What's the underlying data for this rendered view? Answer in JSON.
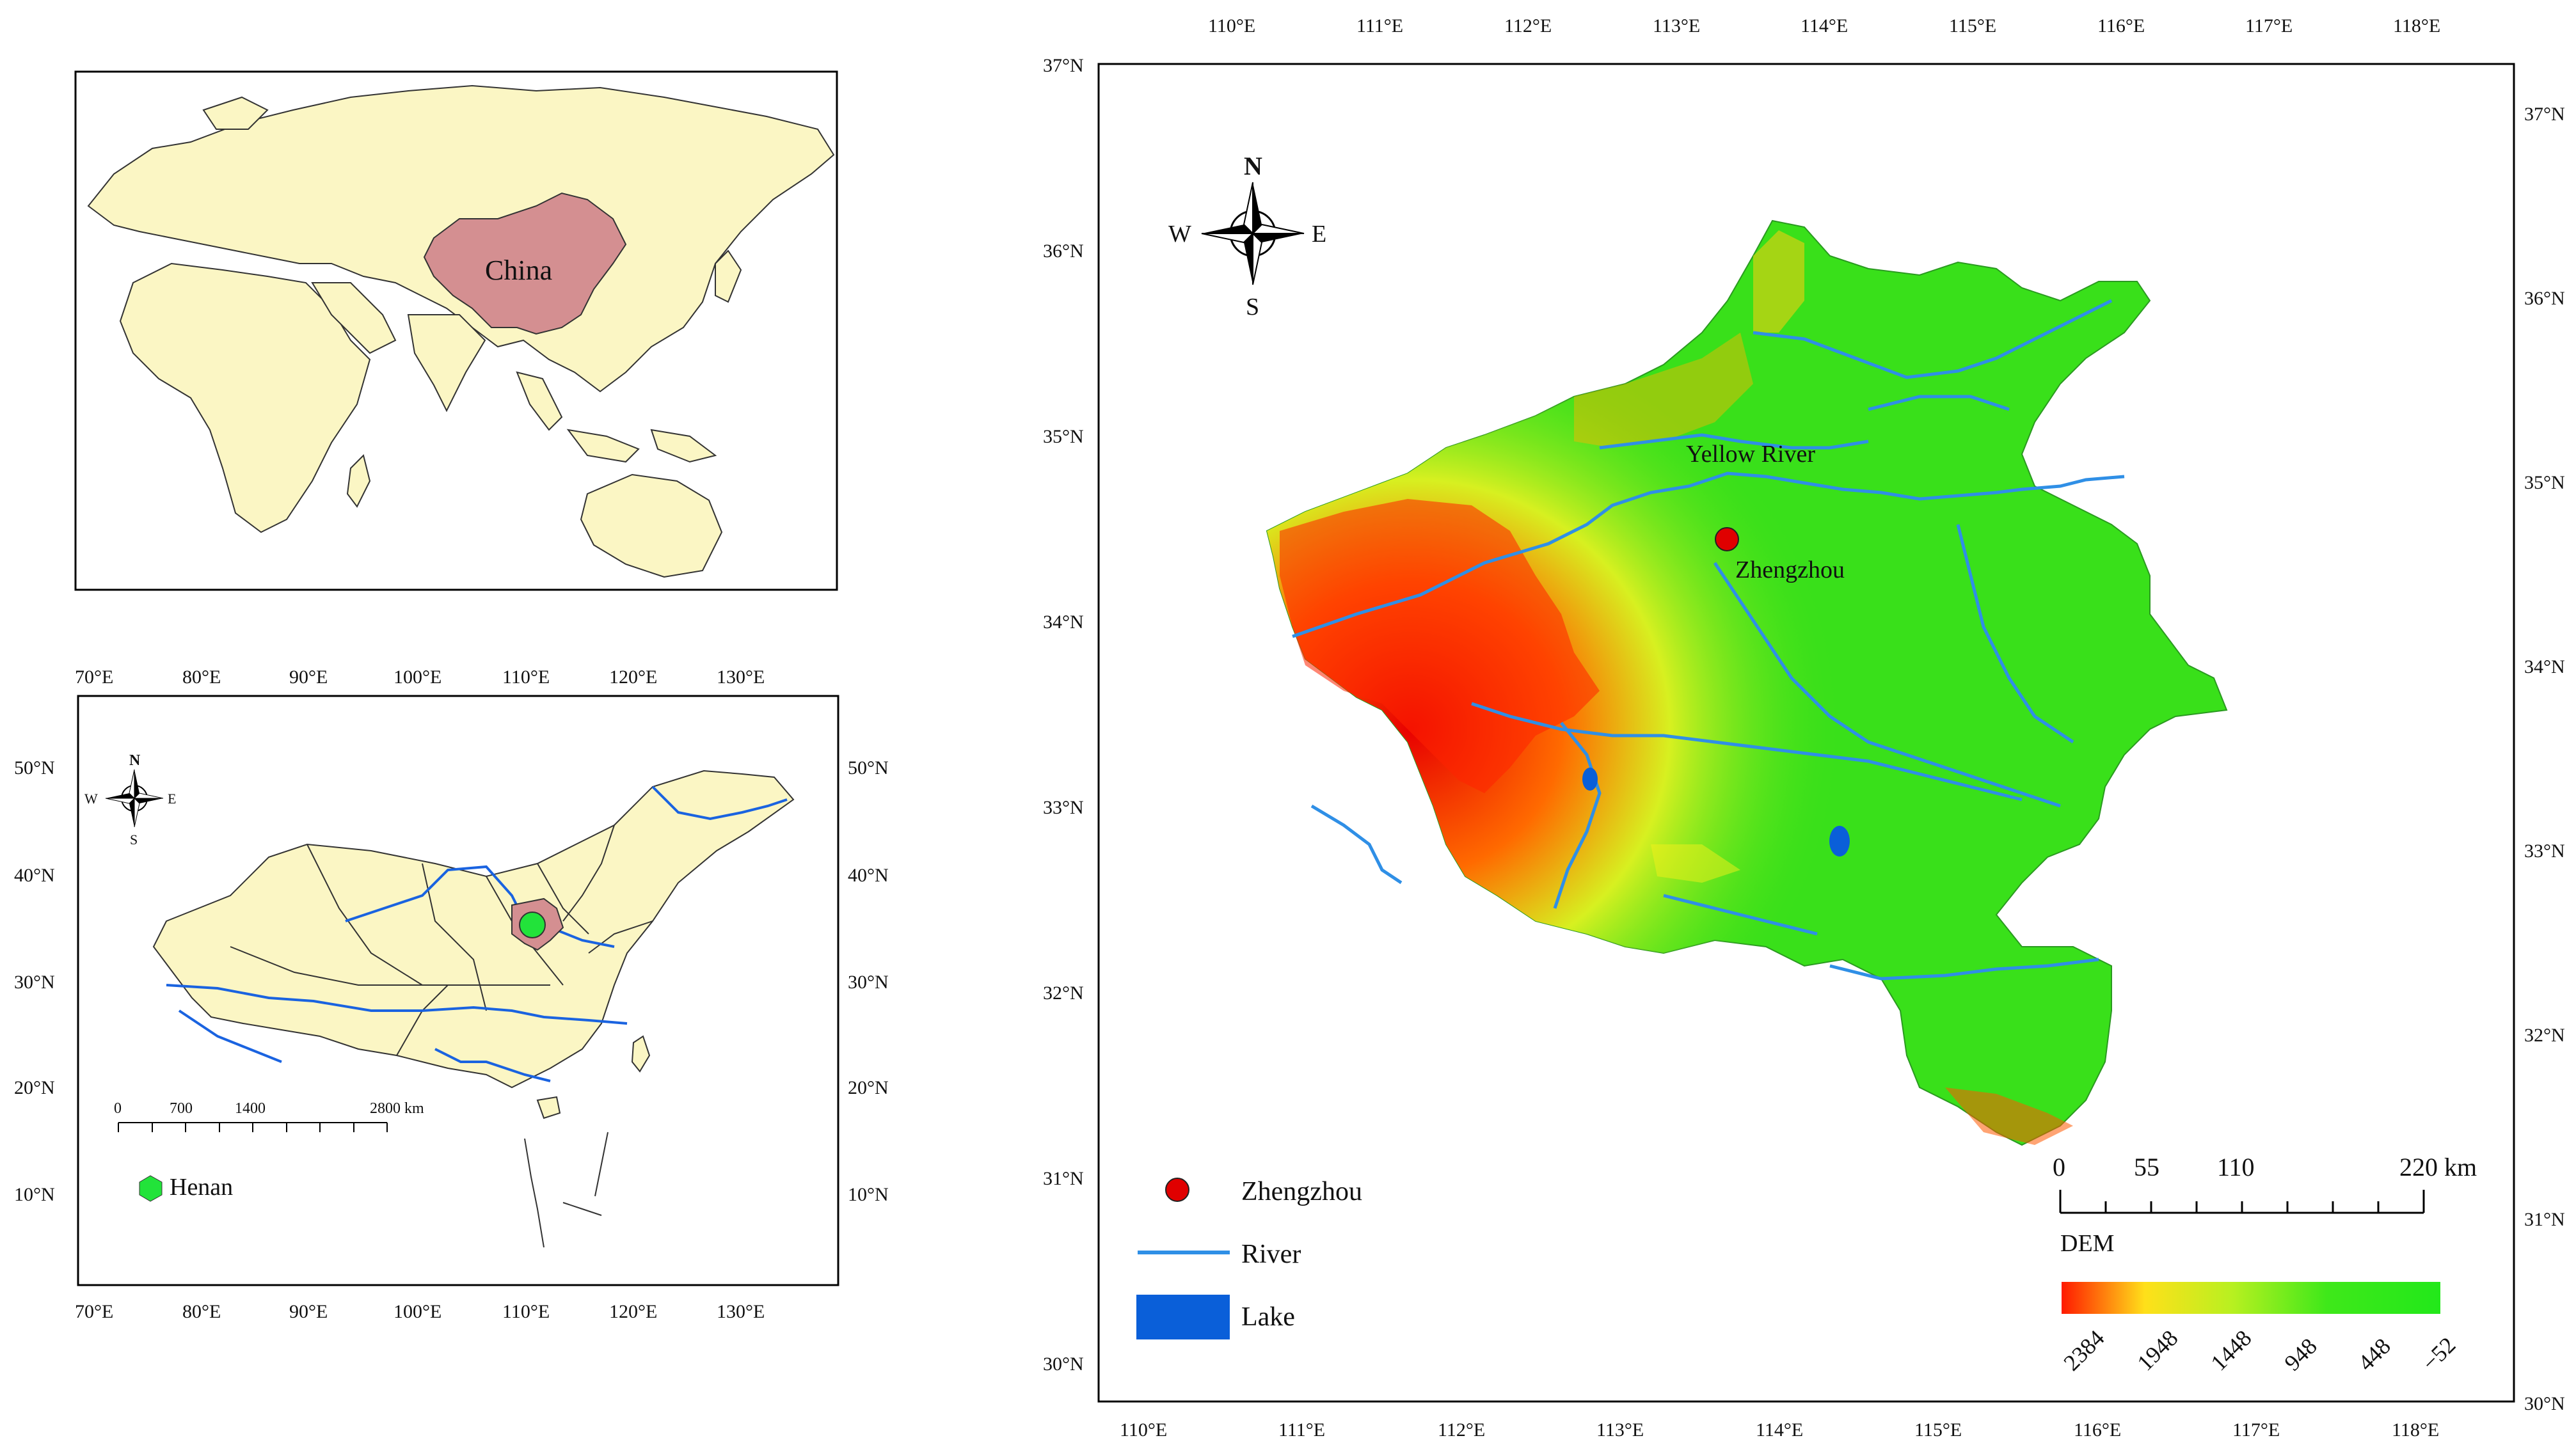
{
  "world_map": {
    "country_label": "China"
  },
  "china_map": {
    "top_lon_labels": [
      "70°E",
      "80°E",
      "90°E",
      "100°E",
      "110°E",
      "120°E",
      "130°E"
    ],
    "bottom_lon_labels": [
      "70°E",
      "80°E",
      "90°E",
      "100°E",
      "110°E",
      "120°E",
      "130°E"
    ],
    "left_lat_labels": [
      "50°N",
      "40°N",
      "30°N",
      "20°N",
      "10°N"
    ],
    "right_lat_labels": [
      "50°N",
      "40°N",
      "30°N",
      "20°N",
      "10°N"
    ],
    "compass": {
      "n": "N",
      "s": "S",
      "e": "E",
      "w": "W"
    },
    "scalebar": {
      "labels": [
        "0",
        "700",
        "1400",
        "2800 km"
      ]
    },
    "legend": {
      "henan_label": "Henan"
    },
    "colors": {
      "land": "#fbf6c4",
      "henan": "#d48f91",
      "river": "#1a63e0",
      "marker": "#22e33a"
    }
  },
  "henan_map": {
    "top_lon_labels": [
      "110°E",
      "111°E",
      "112°E",
      "113°E",
      "114°E",
      "115°E",
      "116°E",
      "117°E",
      "118°E"
    ],
    "bottom_lon_labels": [
      "110°E",
      "111°E",
      "112°E",
      "113°E",
      "114°E",
      "115°E",
      "116°E",
      "117°E",
      "118°E"
    ],
    "left_lat_labels": [
      "37°N",
      "36°N",
      "35°N",
      "34°N",
      "33°N",
      "32°N",
      "31°N",
      "30°N"
    ],
    "right_lat_labels": [
      "37°N",
      "36°N",
      "35°N",
      "34°N",
      "33°N",
      "32°N",
      "31°N",
      "30°N"
    ],
    "compass": {
      "n": "N",
      "s": "S",
      "e": "E",
      "w": "W"
    },
    "labels": {
      "yellow_river": "Yellow River",
      "zhengzhou": "Zhengzhou"
    },
    "legend": {
      "zhengzhou": "Zhengzhou",
      "river": "River",
      "lake": "Lake"
    },
    "scalebar": {
      "labels": [
        "0",
        "55",
        "110",
        "220 km"
      ]
    },
    "dem": {
      "title": "DEM",
      "ticks": [
        "2384",
        "1948",
        "1448",
        "948",
        "448",
        "−52"
      ],
      "colors": [
        "#ff1a00",
        "#ffe01a",
        "#b8f020",
        "#3fe81a",
        "#22e81a"
      ]
    },
    "colors": {
      "river": "#2f8fe6",
      "lake": "#0a5fd9",
      "marker": "#e00000",
      "lowland": "#39e01a"
    }
  }
}
